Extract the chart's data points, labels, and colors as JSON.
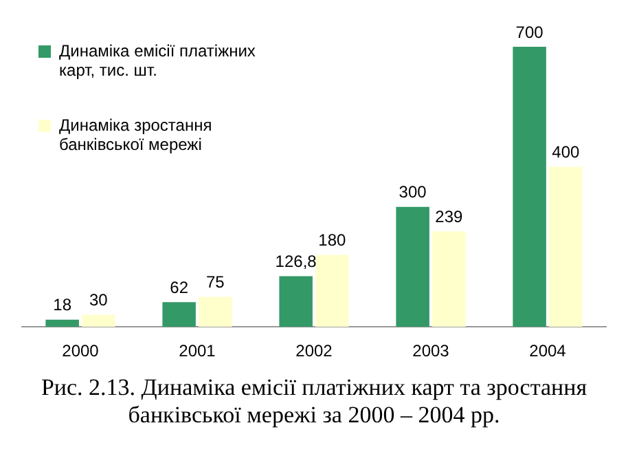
{
  "chart_data": {
    "type": "bar",
    "title": "Рис. 2.13. Динаміка емісії платіжних карт та зростання банківської мережі за 2000 – 2004 рр.",
    "categories": [
      "2000",
      "2001",
      "2002",
      "2003",
      "2004"
    ],
    "series": [
      {
        "name": "Динаміка емісії платіжних карт, тис. шт.",
        "color": "#339966",
        "values": [
          18,
          62,
          126.8,
          300,
          700
        ],
        "value_labels": [
          "18",
          "62",
          "126,8",
          "300",
          "700"
        ]
      },
      {
        "name": "Динаміка зростання банківської мережі",
        "color": "#ffffcc",
        "values": [
          30,
          75,
          180,
          239,
          400
        ],
        "value_labels": [
          "30",
          "75",
          "180",
          "239",
          "400"
        ]
      }
    ],
    "legend": "top left",
    "grid": false
  }
}
